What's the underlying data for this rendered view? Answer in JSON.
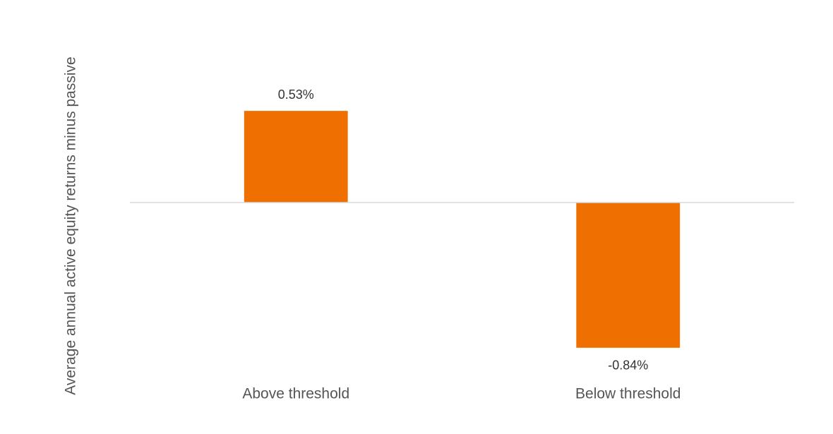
{
  "chart_data": {
    "type": "bar",
    "y_label": "Average annual active equity returns minus passive",
    "categories": [
      "Above threshold",
      "Below threshold"
    ],
    "values": [
      0.53,
      -0.84
    ],
    "value_labels": [
      "0.53%",
      "-0.84%"
    ],
    "color": "#ef6f00",
    "ylim": [
      -1,
      0.6
    ]
  }
}
